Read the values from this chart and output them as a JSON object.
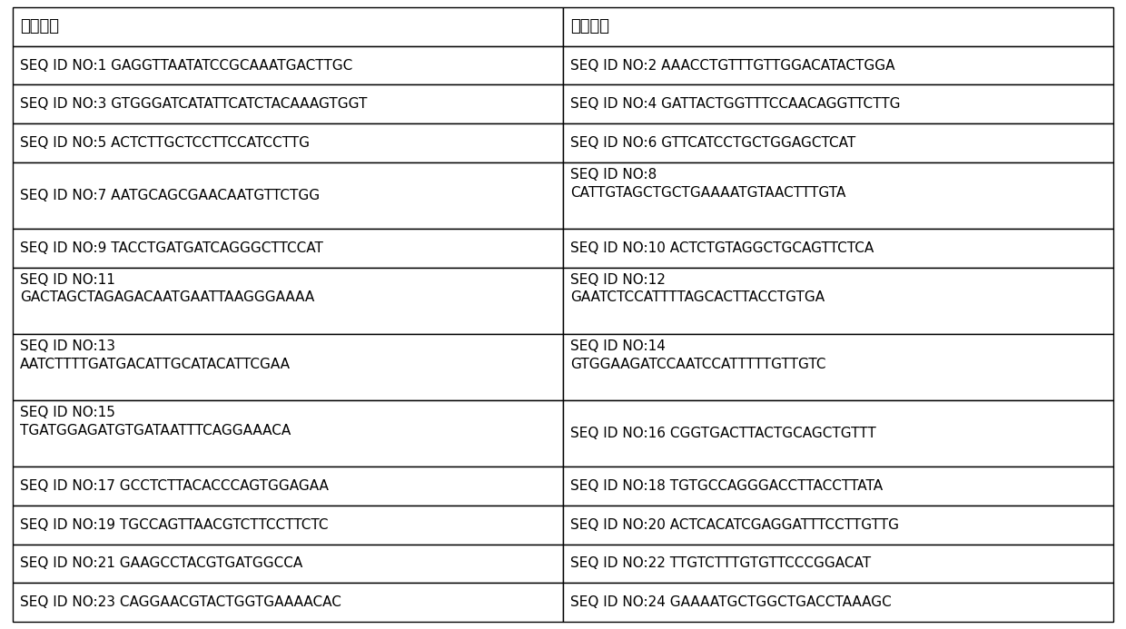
{
  "headers": [
    "正向引物",
    "反向引物"
  ],
  "rows": [
    [
      "SEQ ID NO:1 GAGGTTAATATCCGCAAATGACTTGC",
      "SEQ ID NO:2 AAACCTGTTTGTTGGACATACTGGA"
    ],
    [
      "SEQ ID NO:3 GTGGGATCATATTCATCTACAAAGTGGT",
      "SEQ ID NO:4 GATTACTGGTTTCCAACAGGTTCTTG"
    ],
    [
      "SEQ ID NO:5 ACTCTTGCTCCTTCCATCCTTG",
      "SEQ ID NO:6 GTTCATCCTGCTGGAGCTCAT"
    ],
    [
      "SEQ ID NO:7 AATGCAGCGAACAATGTTCTGG",
      "SEQ ID NO:8\nCATTGTAGCTGCTGAAAATGTAACTTTGTA"
    ],
    [
      "SEQ ID NO:9 TACCTGATGATCAGGGCTTCCAT",
      "SEQ ID NO:10 ACTCTGTAGGCTGCAGTTCTCA"
    ],
    [
      "SEQ ID NO:11\nGACTAGCTAGAGACAATGAATTAAGGGAAAA",
      "SEQ ID NO:12\nGAATCTCCATTTTAGCACTTACCTGTGA"
    ],
    [
      "SEQ ID NO:13\nAATCTTTTGATGACATTGCATACATTCGAA",
      "SEQ ID NO:14\nGTGGAAGATCCAATCCATTTTTGTTGTC"
    ],
    [
      "SEQ ID NO:15\nTGATGGAGATGTGATAATTTCAGGAAACA",
      "SEQ ID NO:16 CGGTGACTTACTGCAGCTGTTT"
    ],
    [
      "SEQ ID NO:17 GCCTCTTACACCCAGTGGAGAA",
      "SEQ ID NO:18 TGTGCCAGGGACCTTACCTTATA"
    ],
    [
      "SEQ ID NO:19 TGCCAGTTAACGTCTTCCTTCTC",
      "SEQ ID NO:20 ACTCACATCGAGGATTTCCTTGTTG"
    ],
    [
      "SEQ ID NO:21 GAAGCCTACGTGATGGCCA",
      "SEQ ID NO:22 TTGTCTTTGTGTTCCCGGACAT"
    ],
    [
      "SEQ ID NO:23 CAGGAACGTACTGGTGAAAACAC",
      "SEQ ID NO:24 GAAAATGCTGGCTGACCTAAAGC"
    ]
  ],
  "bg_color": "#ffffff",
  "border_color": "#000000",
  "text_color": "#000000",
  "header_fontsize": 13,
  "data_fontsize": 11,
  "lw": 1.0
}
